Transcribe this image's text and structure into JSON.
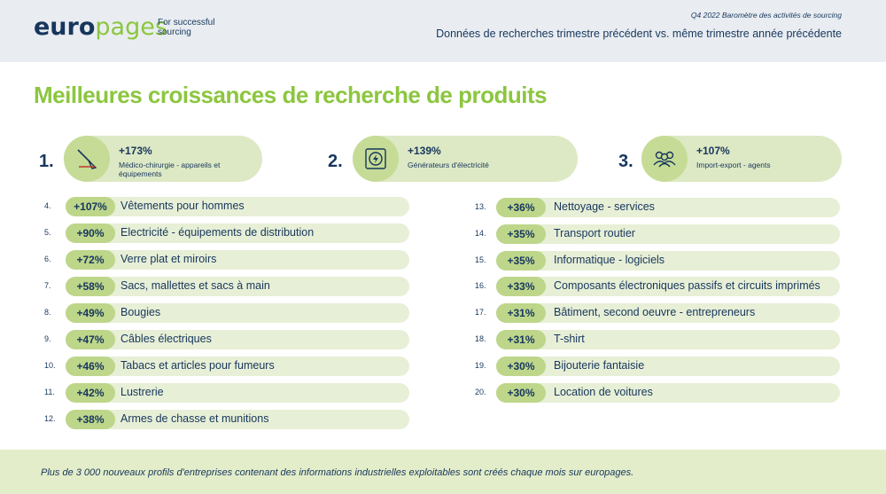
{
  "header": {
    "logo_part1": "euro",
    "logo_part2": "pages",
    "tagline": "For successful sourcing",
    "report_label": "Q4 2022 Baromètre des activités de sourcing",
    "subtitle": "Données de recherches trimestre précédent vs. même trimestre année précédente"
  },
  "title": "Meilleures croissances de recherche de produits",
  "top3": [
    {
      "rank": "1.",
      "pct": "+173%",
      "label": "Médico-chirurgie - appareils et équipements",
      "icon": "scalpel-icon"
    },
    {
      "rank": "2.",
      "pct": "+139%",
      "label": "Générateurs d'électricité",
      "icon": "power-generator-icon"
    },
    {
      "rank": "3.",
      "pct": "+107%",
      "label": "Import-export - agents",
      "icon": "people-group-icon"
    }
  ],
  "left_list": [
    {
      "rank": "4.",
      "pct": "+107%",
      "label": "Vêtements pour hommes"
    },
    {
      "rank": "5.",
      "pct": "+90%",
      "label": "Electricité - équipements de distribution"
    },
    {
      "rank": "6.",
      "pct": "+72%",
      "label": "Verre plat et miroirs"
    },
    {
      "rank": "7.",
      "pct": "+58%",
      "label": "Sacs, mallettes et sacs à main"
    },
    {
      "rank": "8.",
      "pct": "+49%",
      "label": "Bougies"
    },
    {
      "rank": "9.",
      "pct": "+47%",
      "label": "Câbles électriques"
    },
    {
      "rank": "10.",
      "pct": "+46%",
      "label": "Tabacs et articles pour fumeurs"
    },
    {
      "rank": "11.",
      "pct": "+42%",
      "label": "Lustrerie"
    },
    {
      "rank": "12.",
      "pct": "+38%",
      "label": "Armes de chasse et munitions"
    }
  ],
  "right_list": [
    {
      "rank": "13.",
      "pct": "+36%",
      "label": "Nettoyage - services"
    },
    {
      "rank": "14.",
      "pct": "+35%",
      "label": "Transport routier"
    },
    {
      "rank": "15.",
      "pct": "+35%",
      "label": "Informatique - logiciels"
    },
    {
      "rank": "16.",
      "pct": "+33%",
      "label": "Composants électroniques passifs et circuits imprimés"
    },
    {
      "rank": "17.",
      "pct": "+31%",
      "label": "Bâtiment, second oeuvre - entrepreneurs"
    },
    {
      "rank": "18.",
      "pct": "+31%",
      "label": "T-shirt"
    },
    {
      "rank": "19.",
      "pct": "+30%",
      "label": "Bijouterie fantaisie"
    },
    {
      "rank": "20.",
      "pct": "+30%",
      "label": "Location de voitures"
    }
  ],
  "footer": "Plus de 3 000 nouveaux profils d'entreprises contenant des informations industrielles exploitables sont créés chaque mois sur europages.",
  "colors": {
    "accent_green": "#8cc63f",
    "navy": "#17365d",
    "pill_green": "#bdd68a",
    "bar_green": "#e7efd6"
  }
}
